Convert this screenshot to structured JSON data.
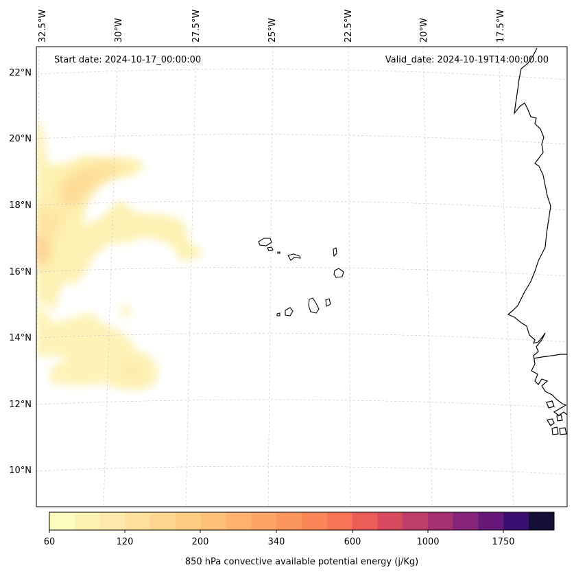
{
  "header": {
    "start_date": "Start date: 2024-10-17_00:00:00",
    "valid_date": "Valid_date: 2024-10-19T14:00:00.00"
  },
  "axes": {
    "lon_labels": [
      "32.5°W",
      "30°W",
      "27.5°W",
      "25°W",
      "22.5°W",
      "20°W",
      "17.5°W"
    ],
    "lat_labels": [
      "22°N",
      "20°N",
      "18°N",
      "16°N",
      "14°N",
      "12°N",
      "10°N"
    ]
  },
  "colorbar": {
    "label": "850 hPa convective available potential energy (j/Kg)",
    "tick_labels": [
      "60",
      "120",
      "200",
      "340",
      "600",
      "1000",
      "1750"
    ],
    "colors": [
      "#fcfdbf",
      "#fdf3b5",
      "#fde9a9",
      "#fedf9b",
      "#fed68e",
      "#fecc82",
      "#febf77",
      "#feb26e",
      "#fea466",
      "#fd955f",
      "#fb8759",
      "#f57556",
      "#ea5e57",
      "#d84b5f",
      "#be3e69",
      "#a3306f",
      "#862578",
      "#661979",
      "#3b0f70",
      "#150e37"
    ]
  },
  "chart_data": {
    "type": "heatmap",
    "variable": "850 hPa convective available potential energy (j/Kg)",
    "start_date": "2024-10-17_00:00:00",
    "valid_date": "2024-10-19T14:00:00.00",
    "lon_range": [
      -33.0,
      -15.5
    ],
    "lat_range": [
      9,
      22.8
    ],
    "colorbar_ticks": [
      60,
      120,
      200,
      340,
      600,
      1000,
      1750
    ],
    "regions": [
      {
        "name": "",
        "lon": -31.0,
        "lat": 18.9,
        "value_range": [
          60,
          200
        ]
      },
      {
        "name": "",
        "lon": -32.9,
        "lat": 16.6,
        "value_range": [
          120,
          340
        ]
      },
      {
        "name": "",
        "lon": -30.5,
        "lat": 13.2,
        "value_range": [
          60,
          120
        ]
      }
    ]
  }
}
